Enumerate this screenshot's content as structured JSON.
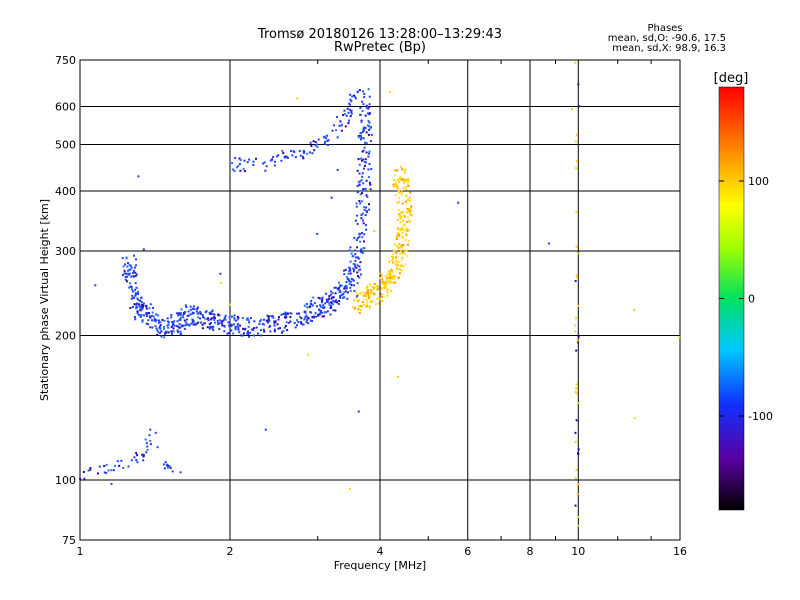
{
  "header": {
    "title_line1": "Tromsø 20180126 13:28:00–13:29:43",
    "title_line2": "RwPretec (Bp)"
  },
  "phase_legend": {
    "title": "Phases",
    "line_o": "mean, sd,O: -90.6, 17.5",
    "line_x": "mean, sd,X:  98.9, 16.3"
  },
  "colors": {
    "o_mode_fill": "#1f3fff",
    "o_mode_dark": "#3000b0",
    "x_mode_fill": "#ffd000",
    "x_mode_orange": "#ff9a00",
    "grid": "#000000"
  },
  "chart_data": {
    "type": "scatter",
    "title": "Tromsø 20180126 13:28:00–13:29:43",
    "subtitle": "RwPretec (Bp)",
    "xlabel": "Frequency [MHz]",
    "ylabel": "Stationary phase Virtual Height [km]",
    "x_scale": "log",
    "y_scale": "log",
    "xlim": [
      1,
      16
    ],
    "ylim": [
      75,
      750
    ],
    "x_ticks": [
      1,
      2,
      4,
      6,
      8,
      10,
      16
    ],
    "x_tick_labels": [
      "1",
      "2",
      "4",
      "6",
      "8",
      "10",
      "16"
    ],
    "y_ticks": [
      75,
      100,
      200,
      300,
      400,
      500,
      600,
      750
    ],
    "y_tick_labels": [
      "75",
      "100",
      "200",
      "300",
      "400",
      "500",
      "600",
      "750"
    ],
    "grid": true,
    "colorbar": {
      "label": "[deg]",
      "range": [
        -180,
        180
      ],
      "ticks": [
        100,
        0,
        -100
      ],
      "tick_labels": [
        "100",
        "0",
        "-100"
      ]
    },
    "series": [
      {
        "mode": "O",
        "phase_mean": -90.6,
        "phase_sd": 17.5,
        "trace_points": [
          {
            "x": 1.25,
            "y": 285
          },
          {
            "x": 1.28,
            "y": 250
          },
          {
            "x": 1.32,
            "y": 225
          },
          {
            "x": 1.4,
            "y": 215
          },
          {
            "x": 1.5,
            "y": 205
          },
          {
            "x": 1.6,
            "y": 215
          },
          {
            "x": 1.7,
            "y": 220
          },
          {
            "x": 1.85,
            "y": 215
          },
          {
            "x": 2.0,
            "y": 210
          },
          {
            "x": 2.2,
            "y": 208
          },
          {
            "x": 2.5,
            "y": 212
          },
          {
            "x": 2.8,
            "y": 218
          },
          {
            "x": 3.0,
            "y": 228
          },
          {
            "x": 3.2,
            "y": 235
          },
          {
            "x": 3.4,
            "y": 250
          },
          {
            "x": 3.55,
            "y": 275
          },
          {
            "x": 3.65,
            "y": 330
          },
          {
            "x": 3.72,
            "y": 420
          },
          {
            "x": 3.74,
            "y": 520
          },
          {
            "x": 3.75,
            "y": 640
          }
        ],
        "upper_branch": [
          {
            "x": 2.05,
            "y": 455
          },
          {
            "x": 2.3,
            "y": 455
          },
          {
            "x": 2.6,
            "y": 470
          },
          {
            "x": 2.9,
            "y": 490
          },
          {
            "x": 3.2,
            "y": 520
          },
          {
            "x": 3.45,
            "y": 580
          },
          {
            "x": 3.6,
            "y": 640
          }
        ],
        "low_layer": [
          {
            "x": 1.0,
            "y": 103
          },
          {
            "x": 1.1,
            "y": 105
          },
          {
            "x": 1.2,
            "y": 108
          },
          {
            "x": 1.3,
            "y": 110
          },
          {
            "x": 1.35,
            "y": 115
          },
          {
            "x": 1.4,
            "y": 128
          },
          {
            "x": 1.5,
            "y": 105
          },
          {
            "x": 1.6,
            "y": 102
          }
        ]
      },
      {
        "mode": "X",
        "phase_mean": 98.9,
        "phase_sd": 16.3,
        "trace_points": [
          {
            "x": 3.6,
            "y": 232
          },
          {
            "x": 3.8,
            "y": 240
          },
          {
            "x": 4.0,
            "y": 250
          },
          {
            "x": 4.2,
            "y": 262
          },
          {
            "x": 4.35,
            "y": 285
          },
          {
            "x": 4.45,
            "y": 320
          },
          {
            "x": 4.5,
            "y": 360
          },
          {
            "x": 4.45,
            "y": 410
          },
          {
            "x": 4.35,
            "y": 430
          }
        ]
      }
    ]
  }
}
